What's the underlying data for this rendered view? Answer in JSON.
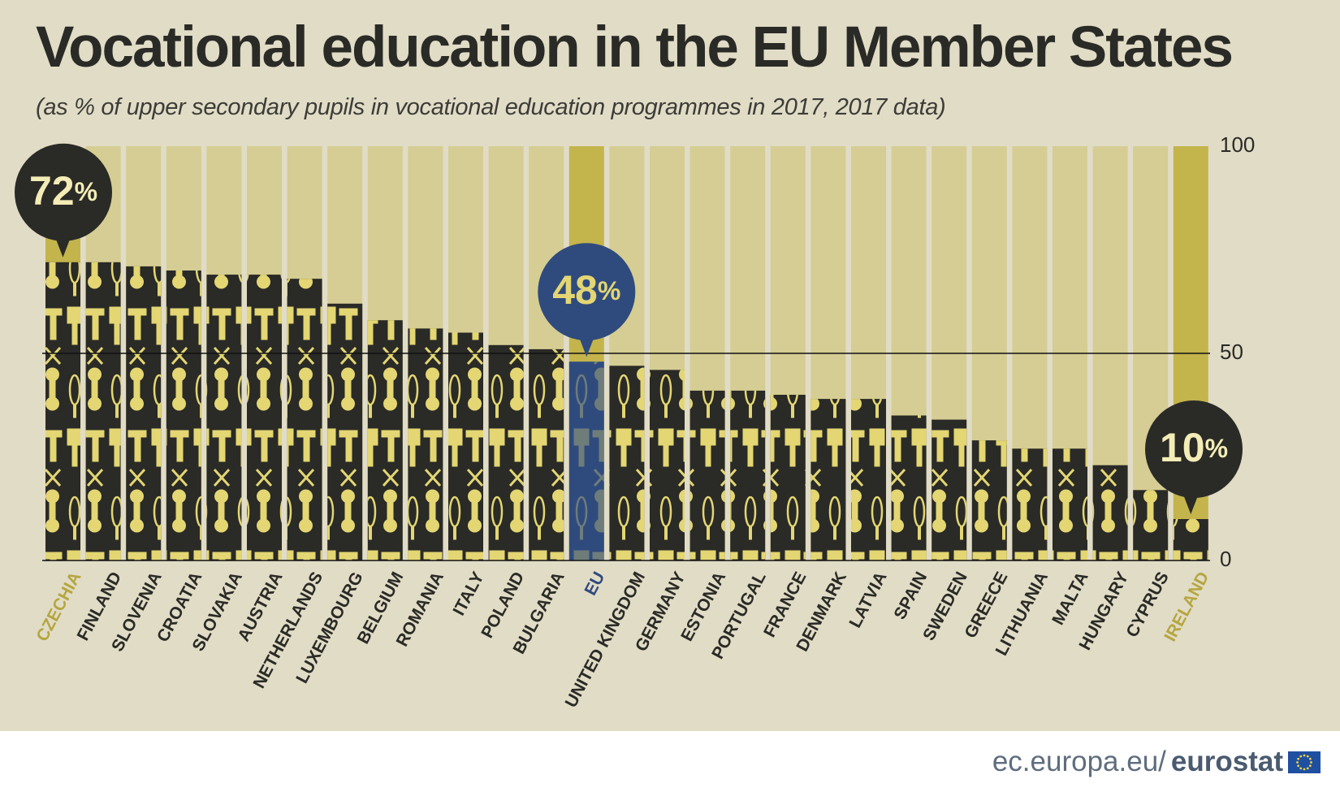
{
  "header": {
    "title": "Vocational education in the EU Member States",
    "subtitle": "(as % of upper secondary pupils in vocational education programmes in 2017, 2017 data)"
  },
  "footer": {
    "site": "ec.europa.eu/",
    "brand": "eurostat",
    "flag_icon": "eu-flag-icon"
  },
  "colors": {
    "background": "#e1dcc6",
    "bar_track": "#d5cd93",
    "bar_track_highlight": "#c3b44c",
    "bar_fill": "#2a2a26",
    "eu_fill": "#2f4b7e",
    "icon": "#e3d673",
    "label": "#2a2a26",
    "highlight_label": "#b5a640",
    "eu_label": "#2f4b7e"
  },
  "chart_data": {
    "type": "bar",
    "title": "Vocational education in the EU Member States",
    "subtitle": "(as % of upper secondary pupils in vocational education programmes in 2017, 2017 data)",
    "ylim": [
      0,
      100
    ],
    "yticks": [
      "0",
      "50",
      "100"
    ],
    "gridline": 50,
    "categories": [
      "CZECHIA",
      "FINLAND",
      "SLOVENIA",
      "CROATIA",
      "SLOVAKIA",
      "AUSTRIA",
      "NETHERLANDS",
      "LUXEMBOURG",
      "BELGIUM",
      "ROMANIA",
      "ITALY",
      "POLAND",
      "BULGARIA",
      "EU",
      "UNITED KINGDOM",
      "GERMANY",
      "ESTONIA",
      "PORTUGAL",
      "FRANCE",
      "DENMARK",
      "LATVIA",
      "SPAIN",
      "SWEDEN",
      "GREECE",
      "LITHUANIA",
      "MALTA",
      "HUNGARY",
      "CYPRUS",
      "IRELAND"
    ],
    "values": [
      72,
      72,
      71,
      70,
      69,
      69,
      68,
      62,
      58,
      56,
      55,
      52,
      51,
      48,
      47,
      46,
      41,
      41,
      40,
      39,
      39,
      35,
      34,
      29,
      27,
      27,
      23,
      17,
      10
    ],
    "highlights": [
      "CZECHIA",
      "IRELAND"
    ],
    "eu_category": "EU",
    "callouts": [
      {
        "category": "CZECHIA",
        "number": "72",
        "unit": "%",
        "style": "dark"
      },
      {
        "category": "EU",
        "number": "48",
        "unit": "%",
        "style": "eu"
      },
      {
        "category": "IRELAND",
        "number": "10",
        "unit": "%",
        "style": "dark"
      }
    ],
    "icons": [
      "wrench-icon",
      "whisk-icon",
      "pliers-icon",
      "scissors-icon",
      "paintbrush-icon",
      "hammer-icon",
      "plug-icon"
    ]
  }
}
